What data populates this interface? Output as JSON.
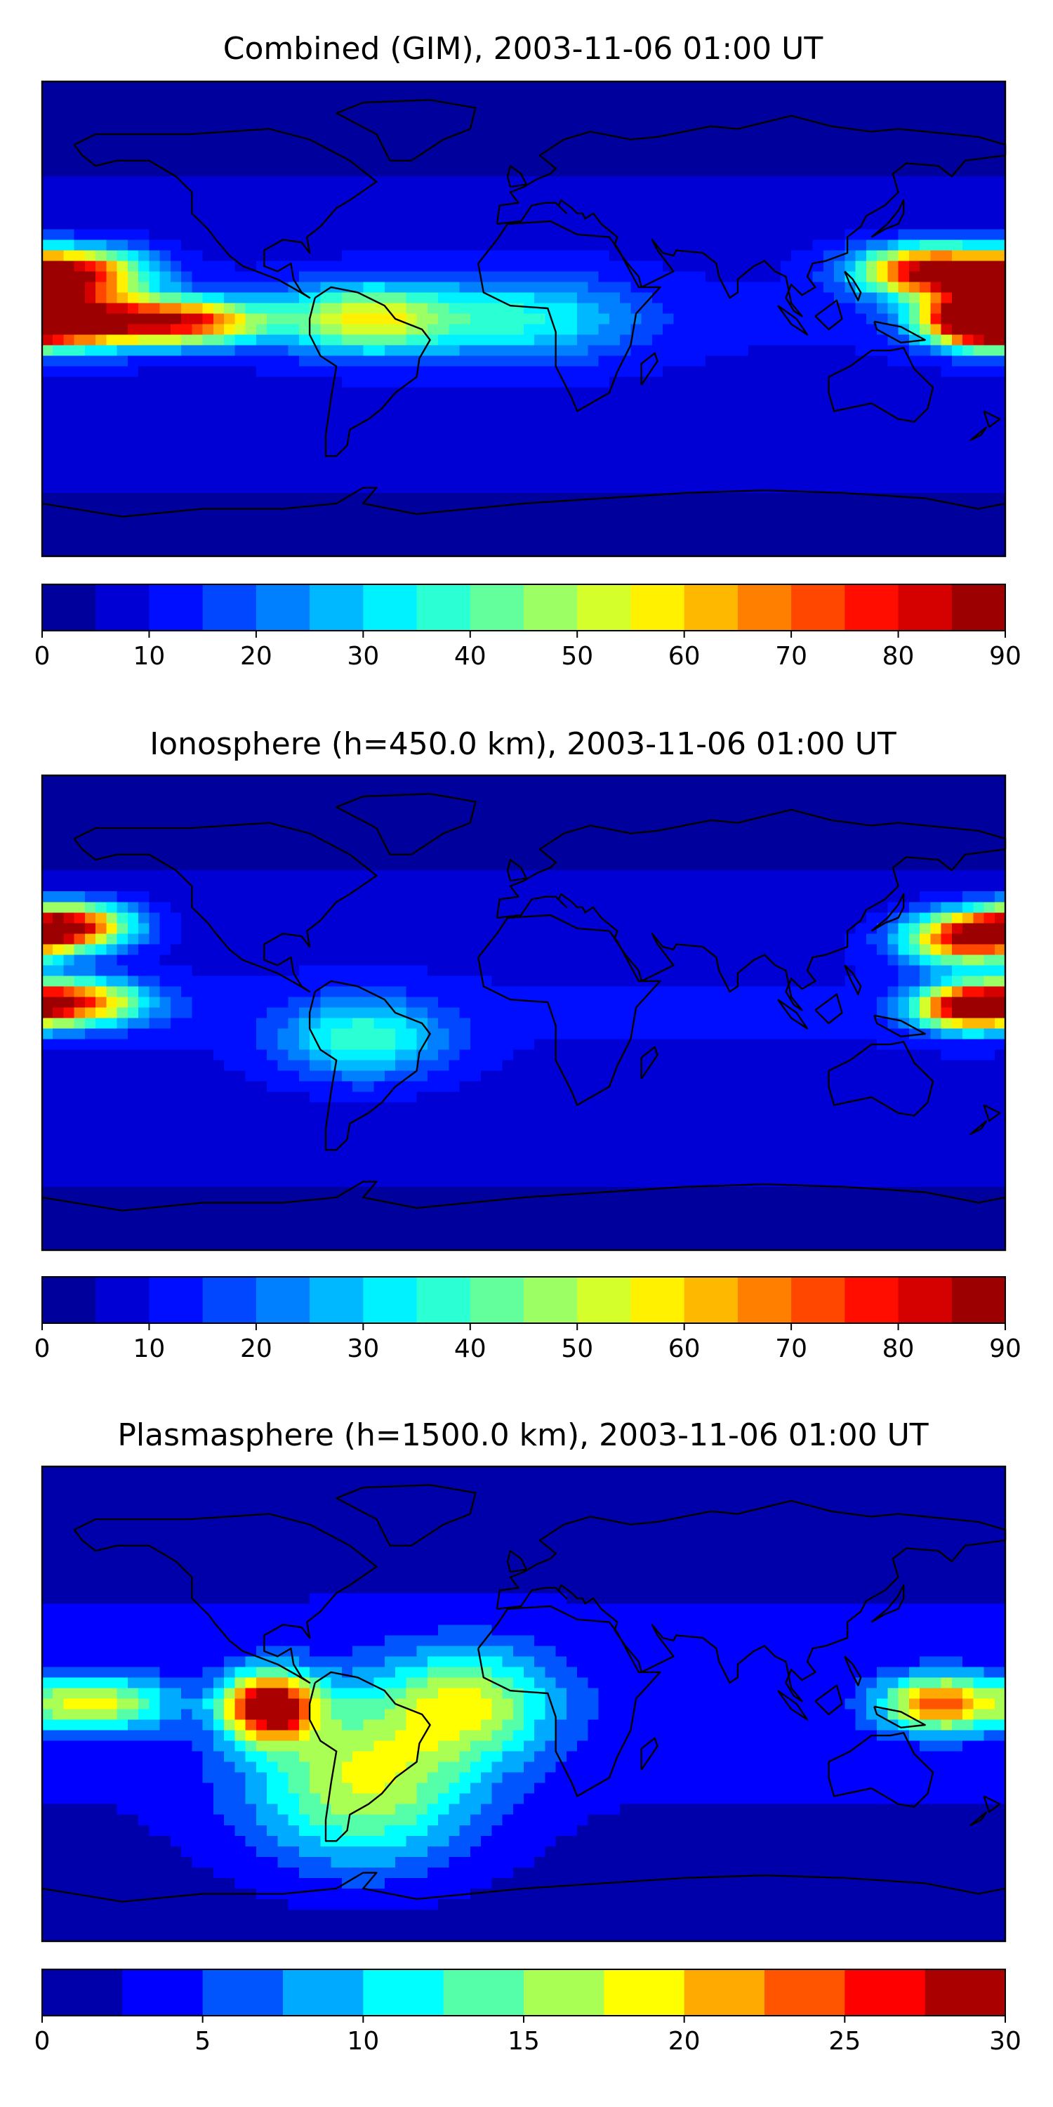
{
  "chart_data": [
    {
      "type": "heatmap",
      "title": "Combined (GIM), 2003-11-06 01:00 UT",
      "colorbar": {
        "ticks": [
          "0",
          "10",
          "20",
          "30",
          "40",
          "50",
          "60",
          "70",
          "80",
          "90"
        ],
        "range": [
          0,
          90
        ],
        "levels": [
          0,
          5,
          10,
          15,
          20,
          25,
          30,
          35,
          40,
          45,
          50,
          55,
          60,
          65,
          70,
          75,
          80,
          85,
          90
        ]
      },
      "features": [
        {
          "lon": -170,
          "lat": 17,
          "value": 80,
          "spread_lon": 26,
          "spread_lat": 9
        },
        {
          "lon": -170,
          "lat": -1,
          "value": 84,
          "spread_lon": 30,
          "spread_lat": 9
        },
        {
          "lon": -125,
          "lat": -1,
          "value": 62,
          "spread_lon": 26,
          "spread_lat": 8
        },
        {
          "lon": -60,
          "lat": 0,
          "value": 45,
          "spread_lon": 30,
          "spread_lat": 12
        },
        {
          "lon": 150,
          "lat": 18,
          "value": 74,
          "spread_lon": 24,
          "spread_lat": 9
        },
        {
          "lon": 170,
          "lat": 0,
          "value": 80,
          "spread_lon": 18,
          "spread_lat": 9
        },
        {
          "lon": 0,
          "lat": 0,
          "value": 25,
          "spread_lon": 40,
          "spread_lat": 15
        }
      ]
    },
    {
      "type": "heatmap",
      "title": "Ionosphere  (h=450.0 km), 2003-11-06 01:00 UT",
      "colorbar": {
        "ticks": [
          "0",
          "10",
          "20",
          "30",
          "40",
          "50",
          "60",
          "70",
          "80",
          "90"
        ],
        "range": [
          0,
          90
        ],
        "levels": [
          0,
          5,
          10,
          15,
          20,
          25,
          30,
          35,
          40,
          45,
          50,
          55,
          60,
          65,
          70,
          75,
          80,
          85,
          90
        ]
      },
      "features": [
        {
          "lon": -170,
          "lat": 33,
          "value": 74,
          "spread_lon": 22,
          "spread_lat": 8
        },
        {
          "lon": -170,
          "lat": 4,
          "value": 68,
          "spread_lon": 26,
          "spread_lat": 8
        },
        {
          "lon": -60,
          "lat": -10,
          "value": 30,
          "spread_lon": 28,
          "spread_lat": 14
        },
        {
          "lon": 165,
          "lat": 28,
          "value": 68,
          "spread_lon": 22,
          "spread_lat": 9
        },
        {
          "lon": 165,
          "lat": 2,
          "value": 66,
          "spread_lon": 18,
          "spread_lat": 8
        }
      ]
    },
    {
      "type": "heatmap",
      "title": "Plasmasphere (h=1500.0 km), 2003-11-06 01:00 UT",
      "colorbar": {
        "ticks": [
          "0",
          "5",
          "10",
          "15",
          "20",
          "25",
          "30"
        ],
        "range": [
          0,
          30
        ],
        "levels": [
          0,
          2.5,
          5,
          7.5,
          10,
          12.5,
          15,
          17.5,
          20,
          22.5,
          25,
          27.5,
          30
        ]
      },
      "features": [
        {
          "lon": -95,
          "lat": -1,
          "value": 28,
          "spread_lon": 16,
          "spread_lat": 12
        },
        {
          "lon": -60,
          "lat": -30,
          "value": 15,
          "spread_lon": 40,
          "spread_lat": 30
        },
        {
          "lon": -160,
          "lat": 0,
          "value": 15,
          "spread_lon": 25,
          "spread_lat": 10
        },
        {
          "lon": 155,
          "lat": 0,
          "value": 20,
          "spread_lon": 20,
          "spread_lat": 10
        },
        {
          "lon": -20,
          "lat": 0,
          "value": 13,
          "spread_lon": 30,
          "spread_lat": 20
        }
      ]
    }
  ]
}
